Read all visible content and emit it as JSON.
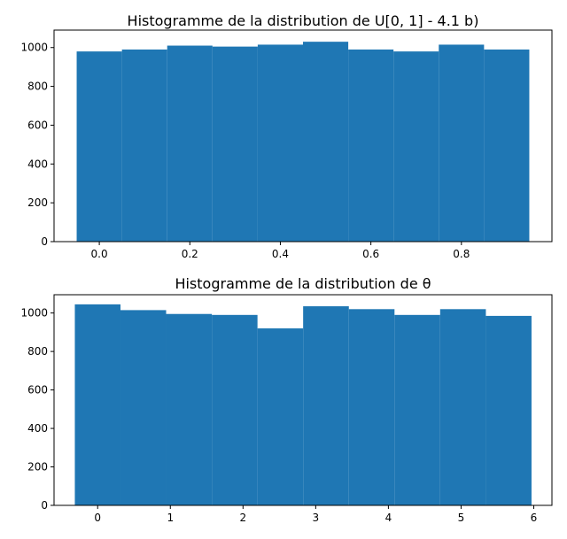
{
  "chart_data": [
    {
      "type": "bar",
      "title": "Histogramme de la distribution de U[0, 1] - 4.1 b)",
      "xlabel": "",
      "ylabel": "",
      "bin_edges": [
        -0.05,
        0.05,
        0.15,
        0.25,
        0.35,
        0.45,
        0.55,
        0.65,
        0.75,
        0.85,
        0.95
      ],
      "values": [
        980,
        990,
        1010,
        1005,
        1015,
        1030,
        990,
        980,
        1015,
        990
      ],
      "xlim": [
        -0.1,
        1.0
      ],
      "ylim": [
        0,
        1090
      ],
      "xticks": [
        0.0,
        0.2,
        0.4,
        0.6,
        0.8
      ],
      "xtick_labels": [
        "0.0",
        "0.2",
        "0.4",
        "0.6",
        "0.8"
      ],
      "yticks": [
        0,
        200,
        400,
        600,
        800,
        1000
      ],
      "ytick_labels": [
        "0",
        "200",
        "400",
        "600",
        "800",
        "1000"
      ],
      "grid": false,
      "color": "#1f77b4"
    },
    {
      "type": "bar",
      "title": "Histogramme de la distribution de θ",
      "xlabel": "",
      "ylabel": "",
      "bin_edges": [
        -0.314,
        0.314,
        0.942,
        1.571,
        2.199,
        2.827,
        3.456,
        4.084,
        4.712,
        5.341,
        5.969
      ],
      "values": [
        1045,
        1015,
        995,
        990,
        920,
        1035,
        1020,
        990,
        1020,
        985
      ],
      "xlim": [
        -0.6,
        6.25
      ],
      "ylim": [
        0,
        1095
      ],
      "xticks": [
        0,
        1,
        2,
        3,
        4,
        5,
        6
      ],
      "xtick_labels": [
        "0",
        "1",
        "2",
        "3",
        "4",
        "5",
        "6"
      ],
      "yticks": [
        0,
        200,
        400,
        600,
        800,
        1000
      ],
      "ytick_labels": [
        "0",
        "200",
        "400",
        "600",
        "800",
        "1000"
      ],
      "grid": false,
      "color": "#1f77b4"
    }
  ]
}
